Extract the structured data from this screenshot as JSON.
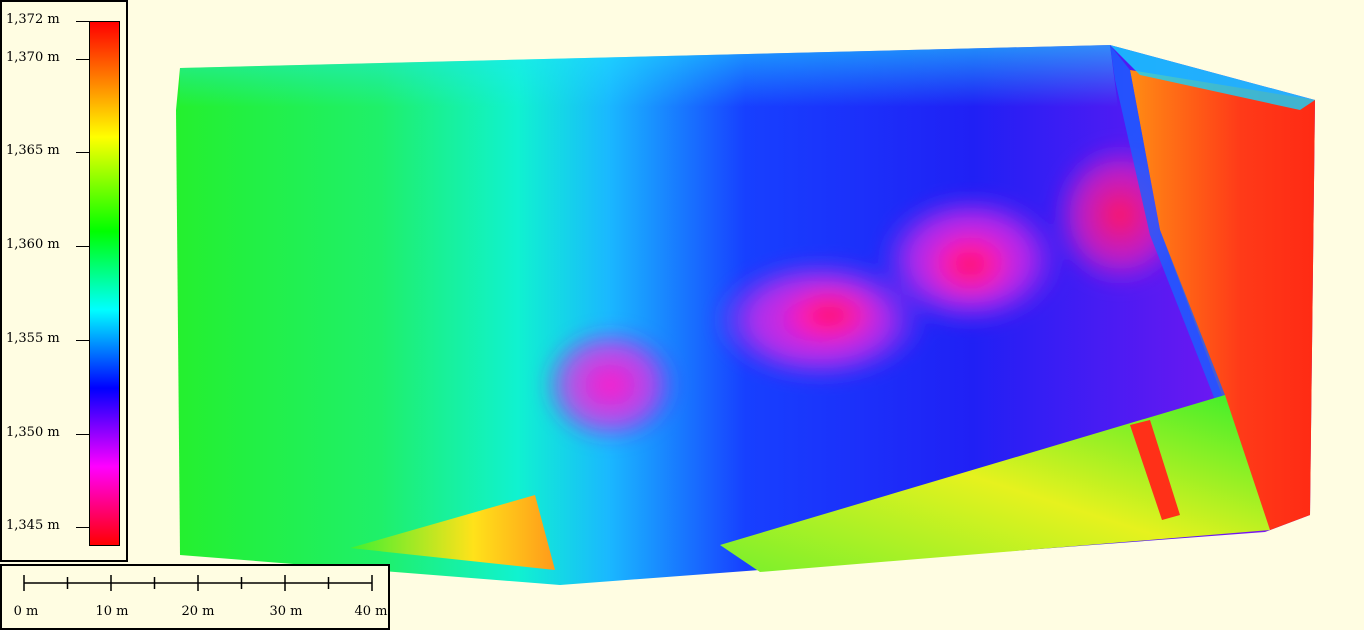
{
  "legend": {
    "ticks": [
      {
        "label": "1,372 m",
        "value": 1372
      },
      {
        "label": "1,370 m",
        "value": 1370
      },
      {
        "label": "1,365 m",
        "value": 1365
      },
      {
        "label": "1,360 m",
        "value": 1360
      },
      {
        "label": "1,355 m",
        "value": 1355
      },
      {
        "label": "1,350 m",
        "value": 1350
      },
      {
        "label": "1,345 m",
        "value": 1345
      }
    ],
    "min": 1344,
    "max": 1372,
    "colors": {
      "low": "#ff0000",
      "magenta": "#ff00ff",
      "blue": "#0000ff",
      "cyan": "#00ffff",
      "green": "#00ff00",
      "yellow": "#ffff00",
      "high": "#ff0000"
    }
  },
  "scalebar": {
    "labels": [
      "0 m",
      "10 m",
      "20 m",
      "30 m",
      "40 m"
    ],
    "unit_label": "m"
  },
  "map": {
    "type": "elevation-heatmap",
    "background": "#fffde2"
  }
}
